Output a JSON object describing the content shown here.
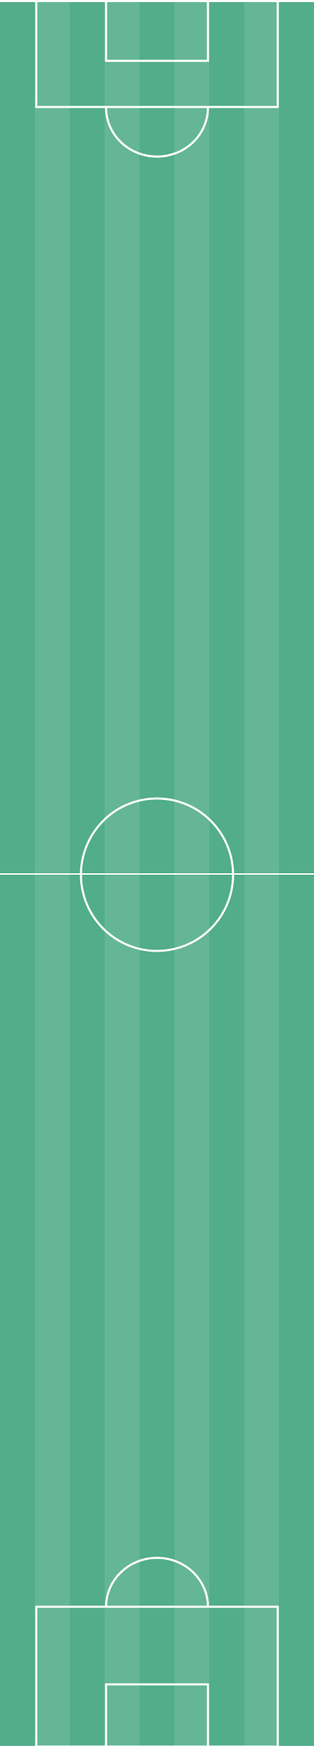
{
  "pitch": {
    "orientation": "vertical",
    "stripe_count": 9,
    "colors": {
      "stripe_dark": "#52ad8a",
      "stripe_light": "#64b696",
      "line": "#ffffff",
      "border": "#ffffff"
    },
    "markings": [
      "top-penalty-box",
      "top-goal-box",
      "top-penalty-arc",
      "halfway-line",
      "center-circle",
      "bottom-penalty-arc",
      "bottom-penalty-box",
      "bottom-goal-box"
    ]
  }
}
